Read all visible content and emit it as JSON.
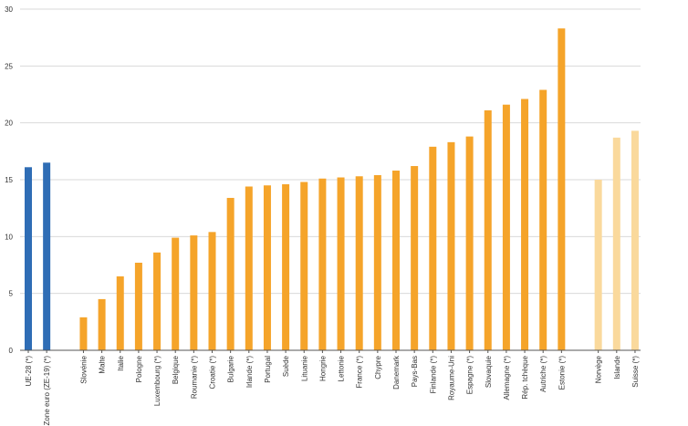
{
  "chart_data": {
    "type": "bar",
    "ylim": [
      0,
      30
    ],
    "y_ticks": [
      0,
      5,
      10,
      15,
      20,
      25,
      30
    ],
    "grid": true,
    "colors": {
      "aggregate": "#2f6db5",
      "eu_member": "#f5a42a",
      "efta": "#fad99c",
      "grid": "#d9d9d9",
      "axis": "#555555"
    },
    "groups": [
      {
        "key": "aggregate",
        "categories": [
          "UE-28 (*)",
          "Zone euro (ZE-19) (*)"
        ],
        "values": [
          16.1,
          16.5
        ]
      },
      {
        "key": "eu_member",
        "categories": [
          "Slovénie",
          "Malte",
          "Italie",
          "Pologne",
          "Luxembourg (*)",
          "Belgique",
          "Roumanie (*)",
          "Croatie (*)",
          "Bulgarie",
          "Irlande (*)",
          "Portugal",
          "Suède",
          "Lituanie",
          "Hongrie",
          "Lettonie",
          "France (*)",
          "Chypre",
          "Danemark",
          "Pays-Bas",
          "Finlande (*)",
          "Royaume-Uni",
          "Espagne (*)",
          "Slovaquie",
          "Allemagne (*)",
          "Rép. tchèque",
          "Autriche (*)",
          "Estonie (*)"
        ],
        "values": [
          2.9,
          4.5,
          6.5,
          7.7,
          8.6,
          9.9,
          10.1,
          10.4,
          13.4,
          14.4,
          14.5,
          14.6,
          14.8,
          15.1,
          15.2,
          15.3,
          15.4,
          15.8,
          16.2,
          17.9,
          18.3,
          18.8,
          21.1,
          21.6,
          22.1,
          22.9,
          28.3
        ]
      },
      {
        "key": "efta",
        "categories": [
          "Norvège",
          "Islande",
          "Suisse (*)"
        ],
        "values": [
          15.0,
          18.7,
          19.3
        ]
      }
    ]
  }
}
